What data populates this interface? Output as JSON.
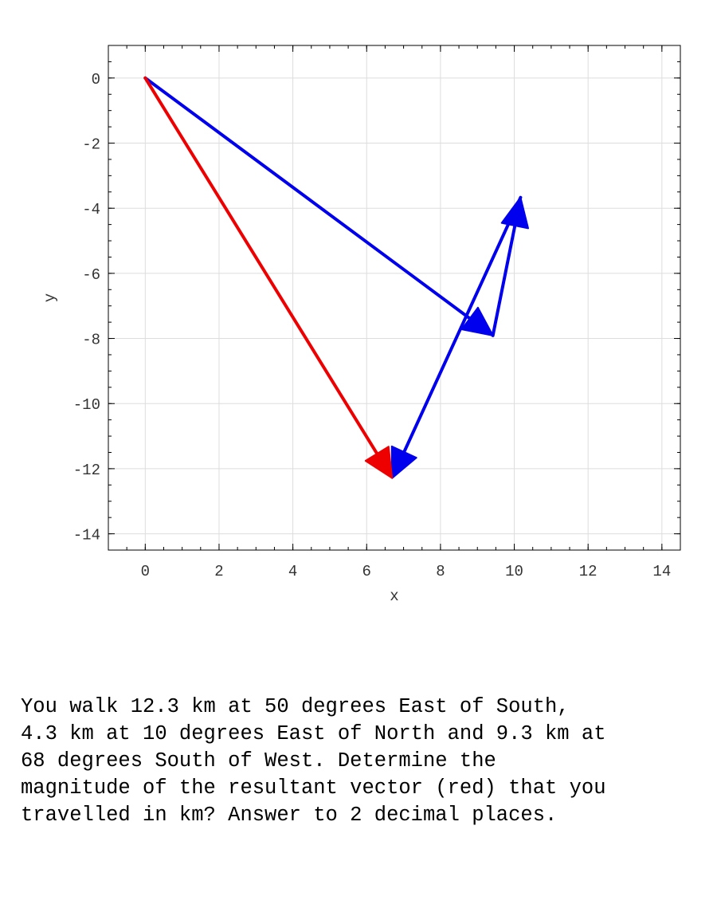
{
  "chart_data": {
    "type": "line",
    "xlabel": "x",
    "ylabel": "y",
    "xlim": [
      -1,
      14.5
    ],
    "ylim": [
      -14.5,
      1
    ],
    "x_ticks": [
      0,
      2,
      4,
      6,
      8,
      10,
      12,
      14
    ],
    "y_ticks": [
      0,
      -2,
      -4,
      -6,
      -8,
      -10,
      -12,
      -14
    ],
    "grid": true,
    "series": [
      {
        "color": "#0000ee",
        "from": [
          0,
          0
        ],
        "to": [
          9.42,
          -7.91
        ]
      },
      {
        "color": "#0000ee",
        "from": [
          9.42,
          -7.91
        ],
        "to": [
          10.17,
          -3.67
        ]
      },
      {
        "color": "#0000ee",
        "from": [
          10.17,
          -3.67
        ],
        "to": [
          6.69,
          -12.29
        ]
      },
      {
        "color": "#ee0000",
        "from": [
          0,
          0
        ],
        "to": [
          6.69,
          -12.29
        ]
      }
    ]
  },
  "question": "You walk 12.3 km at 50 degrees East of South,\n4.3 km at 10 degrees East of North and 9.3 km at\n68 degrees South of West.  Determine the\nmagnitude of the resultant vector (red) that you\ntravelled in km? Answer to 2 decimal places."
}
